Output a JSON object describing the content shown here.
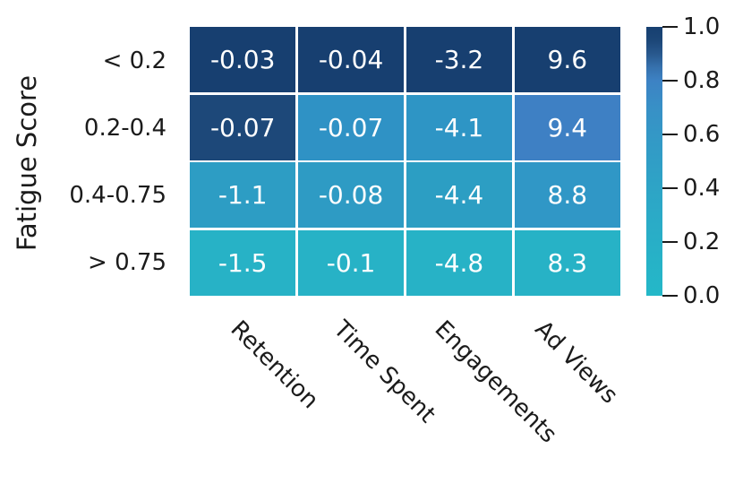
{
  "chart_data": {
    "type": "heatmap",
    "ylabel": "Fatigue Score",
    "xlabel": "",
    "columns": [
      "Retention",
      "Time Spent",
      "Engagements",
      "Ad Views"
    ],
    "rows": [
      "< 0.2",
      "0.2-0.4",
      "0.4-0.75",
      "> 0.75"
    ],
    "values": [
      [
        -0.03,
        -0.04,
        -3.2,
        9.6
      ],
      [
        -0.07,
        -0.07,
        -4.1,
        9.4
      ],
      [
        -1.1,
        -0.08,
        -4.4,
        8.8
      ],
      [
        -1.5,
        -0.1,
        -4.8,
        8.3
      ]
    ],
    "annotations": [
      [
        "-0.03",
        "-0.04",
        "-3.2",
        "9.6"
      ],
      [
        "-0.07",
        "-0.07",
        "-4.1",
        "9.4"
      ],
      [
        "-1.1",
        "-0.08",
        "-4.4",
        "8.8"
      ],
      [
        "-1.5",
        "-0.1",
        "-4.8",
        "8.3"
      ]
    ],
    "cell_colors": [
      [
        "#173f70",
        "#173f70",
        "#173f70",
        "#173f70"
      ],
      [
        "#1d4879",
        "#2f92c5",
        "#2e95c5",
        "#3e80c4"
      ],
      [
        "#2d9dc4",
        "#2e9bc4",
        "#2c9ec3",
        "#3097c6"
      ],
      [
        "#27b2c6",
        "#27b2c6",
        "#27b2c6",
        "#27b2c6"
      ]
    ],
    "annotation_text_color": "#ffffff",
    "tick_text_color": "#1b1b1b",
    "gridline_color": "#ffffff",
    "colorbar": {
      "range": [
        0.0,
        1.0
      ],
      "ticks": [
        "1.0",
        "0.8",
        "0.6",
        "0.4",
        "0.2",
        "0.0"
      ],
      "gradient_stops_top_to_bottom": [
        {
          "pos": 0,
          "color": "#163f70"
        },
        {
          "pos": 5,
          "color": "#1c4677"
        },
        {
          "pos": 10,
          "color": "#28588d"
        },
        {
          "pos": 15,
          "color": "#3671ad"
        },
        {
          "pos": 20,
          "color": "#3d82c4"
        },
        {
          "pos": 30,
          "color": "#3890c6"
        },
        {
          "pos": 42,
          "color": "#3399c6"
        },
        {
          "pos": 55,
          "color": "#2fa1c6"
        },
        {
          "pos": 70,
          "color": "#2baac7"
        },
        {
          "pos": 85,
          "color": "#27b1c7"
        },
        {
          "pos": 100,
          "color": "#24b8c8"
        }
      ]
    },
    "legend": null,
    "grid_on": false
  }
}
